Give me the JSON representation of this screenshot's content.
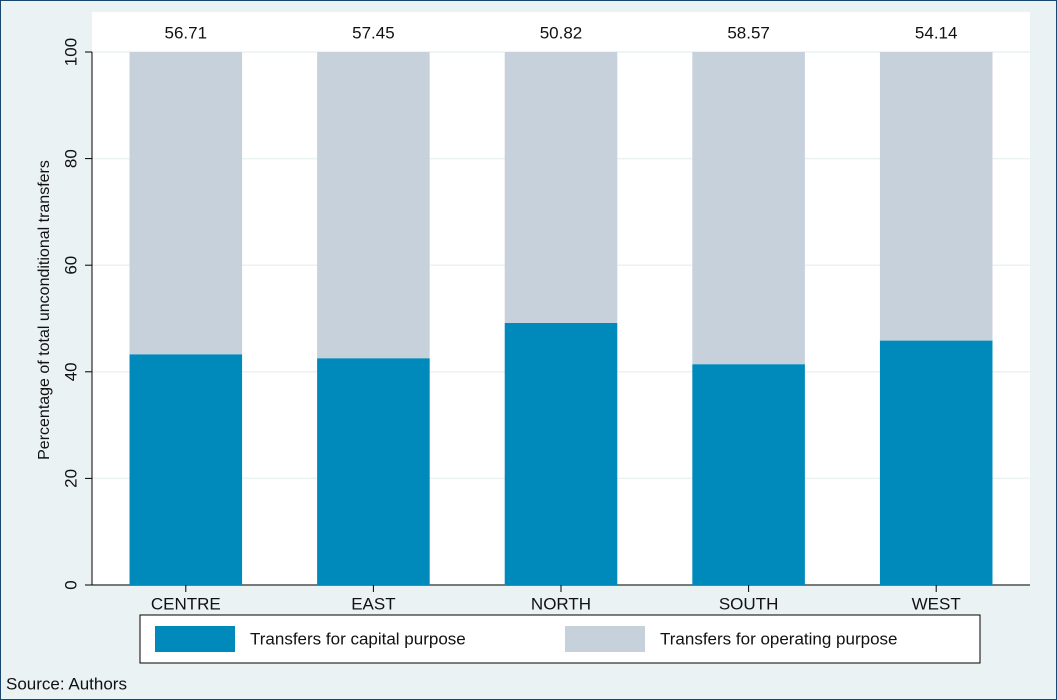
{
  "chart_data": {
    "type": "stacked_bar",
    "y_label": "Percentage of total unconditional transfers",
    "categories": [
      "CENTRE",
      "EAST",
      "NORTH",
      "SOUTH",
      "WEST"
    ],
    "series": [
      {
        "name": "Transfers for capital purpose",
        "color": "#0089bb",
        "values": [
          43.29,
          42.55,
          49.18,
          41.43,
          45.86
        ]
      },
      {
        "name": "Transfers for operating purpose",
        "color": "#c6d1dc",
        "values": [
          56.71,
          57.45,
          50.82,
          58.57,
          54.14
        ]
      }
    ],
    "ylim": [
      0,
      100
    ],
    "yticks": [
      0,
      20,
      40,
      60,
      80,
      100
    ],
    "grid": true,
    "legend": "bottom",
    "note": "Source: Authors"
  }
}
